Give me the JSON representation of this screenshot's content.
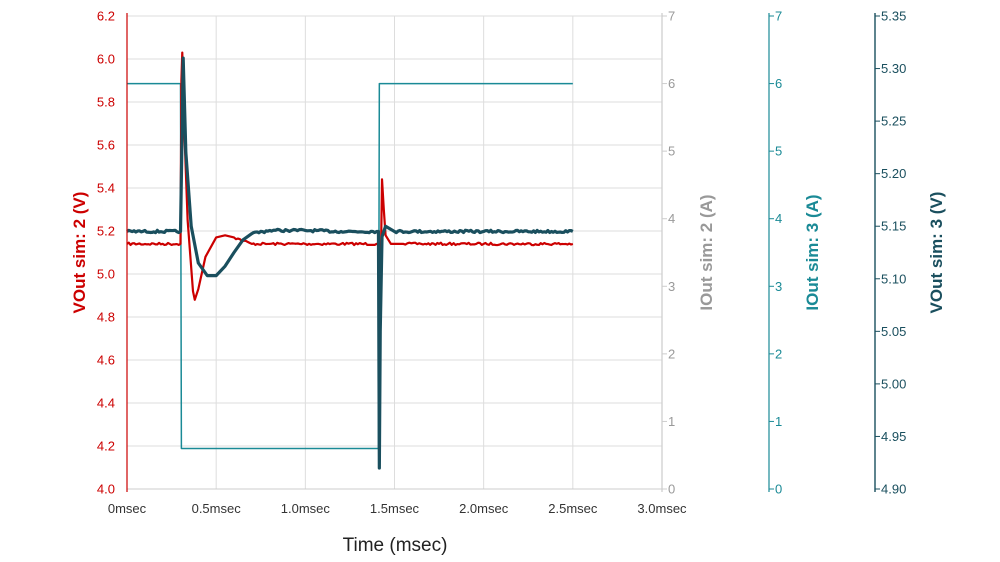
{
  "chart_data": {
    "type": "line",
    "title": "",
    "xlabel": "Time (msec)",
    "xlim": [
      0,
      3.0
    ],
    "x_ticks": [
      "0msec",
      "0.5msec",
      "1.0msec",
      "1.5msec",
      "2.0msec",
      "2.5msec",
      "3.0msec"
    ],
    "x_tick_values": [
      0,
      0.5,
      1.0,
      1.5,
      2.0,
      2.5,
      3.0
    ],
    "grid": true,
    "legend": "none",
    "axes": [
      {
        "id": "vout2",
        "label": "VOut sim: 2 (V)",
        "side": "left",
        "color": "#cc0000",
        "min": 4.0,
        "max": 6.2,
        "ticks": [
          "4.0",
          "4.2",
          "4.4",
          "4.6",
          "4.8",
          "5.0",
          "5.2",
          "5.4",
          "5.6",
          "5.8",
          "6.0",
          "6.2"
        ],
        "tick_values": [
          4.0,
          4.2,
          4.4,
          4.6,
          4.8,
          5.0,
          5.2,
          5.4,
          5.6,
          5.8,
          6.0,
          6.2
        ]
      },
      {
        "id": "iout2",
        "label": "IOut sim: 2 (A)",
        "side": "right",
        "color": "#999999",
        "min": 0,
        "max": 7,
        "ticks": [
          "0",
          "1",
          "2",
          "3",
          "4",
          "5",
          "6",
          "7"
        ],
        "tick_values": [
          0,
          1,
          2,
          3,
          4,
          5,
          6,
          7
        ]
      },
      {
        "id": "iout3",
        "label": "IOut sim: 3 (A)",
        "side": "right",
        "color": "#1a8a96",
        "min": 0,
        "max": 7,
        "ticks": [
          "0",
          "1",
          "2",
          "3",
          "4",
          "5",
          "6",
          "7"
        ],
        "tick_values": [
          0,
          1,
          2,
          3,
          4,
          5,
          6,
          7
        ]
      },
      {
        "id": "vout3",
        "label": "VOut sim: 3 (V)",
        "side": "right",
        "color": "#1a4f5e",
        "min": 4.9,
        "max": 5.35,
        "ticks": [
          "4.90",
          "4.95",
          "5.00",
          "5.05",
          "5.10",
          "5.15",
          "5.20",
          "5.25",
          "5.30",
          "5.35"
        ],
        "tick_values": [
          4.9,
          4.95,
          5.0,
          5.05,
          5.1,
          5.15,
          5.2,
          5.25,
          5.3,
          5.35
        ]
      }
    ],
    "series": [
      {
        "axis": "iout3",
        "color": "#1a8a96",
        "width": 1.5,
        "x": [
          0,
          0.3,
          0.305,
          1.41,
          1.415,
          2.5
        ],
        "y": [
          6.0,
          6.0,
          0.6,
          0.6,
          6.0,
          6.0
        ]
      },
      {
        "axis": "vout2",
        "color": "#cc0000",
        "width": 2.2,
        "noisy": true,
        "x": [
          0,
          0.3,
          0.305,
          0.31,
          0.32,
          0.34,
          0.37,
          0.38,
          0.4,
          0.44,
          0.5,
          0.55,
          0.6,
          0.7,
          0.8,
          1.0,
          1.2,
          1.4,
          1.41,
          1.415,
          1.42,
          1.43,
          1.44,
          1.45,
          1.48,
          1.55,
          1.65,
          1.8,
          2.0,
          2.5
        ],
        "y": [
          5.14,
          5.14,
          5.9,
          6.03,
          5.7,
          5.25,
          4.92,
          4.88,
          4.93,
          5.08,
          5.17,
          5.18,
          5.17,
          5.14,
          5.14,
          5.14,
          5.14,
          5.14,
          5.14,
          4.2,
          4.85,
          5.44,
          5.3,
          5.18,
          5.14,
          5.14,
          5.14,
          5.14,
          5.14,
          5.14
        ]
      },
      {
        "axis": "vout3",
        "color": "#1a4f5e",
        "width": 3.2,
        "noisy": true,
        "x": [
          0,
          0.3,
          0.31,
          0.315,
          0.33,
          0.36,
          0.4,
          0.45,
          0.5,
          0.55,
          0.6,
          0.65,
          0.7,
          0.8,
          0.9,
          1.0,
          1.2,
          1.4,
          1.41,
          1.415,
          1.42,
          1.43,
          1.45,
          1.5,
          1.6,
          2.0,
          2.5
        ],
        "y": [
          5.145,
          5.145,
          5.25,
          5.31,
          5.22,
          5.15,
          5.115,
          5.103,
          5.103,
          5.112,
          5.125,
          5.137,
          5.143,
          5.146,
          5.146,
          5.146,
          5.145,
          5.145,
          5.145,
          4.92,
          5.05,
          5.14,
          5.15,
          5.145,
          5.145,
          5.145,
          5.145
        ]
      }
    ]
  }
}
